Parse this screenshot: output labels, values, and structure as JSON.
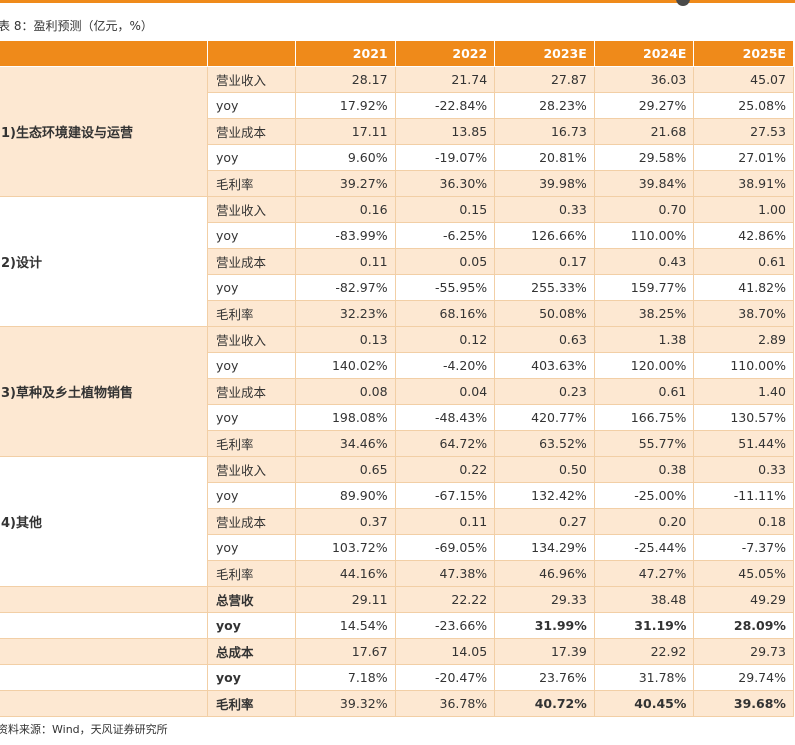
{
  "caption": "表 8：盈利预测（亿元，%）",
  "source": "资料来源：Wind，天风证券研究所",
  "header": [
    "",
    "",
    "2021",
    "2022",
    "2023E",
    "2024E",
    "2025E"
  ],
  "segments": [
    {
      "name": "1)生态环境建设与运营",
      "rows": [
        {
          "label": "营业收入",
          "values": [
            "28.17",
            "21.74",
            "27.87",
            "36.03",
            "45.07"
          ]
        },
        {
          "label": "yoy",
          "values": [
            "17.92%",
            "-22.84%",
            "28.23%",
            "29.27%",
            "25.08%"
          ]
        },
        {
          "label": "营业成本",
          "values": [
            "17.11",
            "13.85",
            "16.73",
            "21.68",
            "27.53"
          ]
        },
        {
          "label": "yoy",
          "values": [
            "9.60%",
            "-19.07%",
            "20.81%",
            "29.58%",
            "27.01%"
          ]
        },
        {
          "label": "毛利率",
          "values": [
            "39.27%",
            "36.30%",
            "39.98%",
            "39.84%",
            "38.91%"
          ]
        }
      ]
    },
    {
      "name": "2)设计",
      "rows": [
        {
          "label": "营业收入",
          "values": [
            "0.16",
            "0.15",
            "0.33",
            "0.70",
            "1.00"
          ]
        },
        {
          "label": "yoy",
          "values": [
            "-83.99%",
            "-6.25%",
            "126.66%",
            "110.00%",
            "42.86%"
          ]
        },
        {
          "label": "营业成本",
          "values": [
            "0.11",
            "0.05",
            "0.17",
            "0.43",
            "0.61"
          ]
        },
        {
          "label": "yoy",
          "values": [
            "-82.97%",
            "-55.95%",
            "255.33%",
            "159.77%",
            "41.82%"
          ]
        },
        {
          "label": "毛利率",
          "values": [
            "32.23%",
            "68.16%",
            "50.08%",
            "38.25%",
            "38.70%"
          ]
        }
      ]
    },
    {
      "name": "3)草种及乡土植物销售",
      "rows": [
        {
          "label": "营业收入",
          "values": [
            "0.13",
            "0.12",
            "0.63",
            "1.38",
            "2.89"
          ]
        },
        {
          "label": "yoy",
          "values": [
            "140.02%",
            "-4.20%",
            "403.63%",
            "120.00%",
            "110.00%"
          ]
        },
        {
          "label": "营业成本",
          "values": [
            "0.08",
            "0.04",
            "0.23",
            "0.61",
            "1.40"
          ]
        },
        {
          "label": "yoy",
          "values": [
            "198.08%",
            "-48.43%",
            "420.77%",
            "166.75%",
            "130.57%"
          ]
        },
        {
          "label": "毛利率",
          "values": [
            "34.46%",
            "64.72%",
            "63.52%",
            "55.77%",
            "51.44%"
          ]
        }
      ]
    },
    {
      "name": "4)其他",
      "rows": [
        {
          "label": "营业收入",
          "values": [
            "0.65",
            "0.22",
            "0.50",
            "0.38",
            "0.33"
          ]
        },
        {
          "label": "yoy",
          "values": [
            "89.90%",
            "-67.15%",
            "132.42%",
            "-25.00%",
            "-11.11%"
          ]
        },
        {
          "label": "营业成本",
          "values": [
            "0.37",
            "0.11",
            "0.27",
            "0.20",
            "0.18"
          ]
        },
        {
          "label": "yoy",
          "values": [
            "103.72%",
            "-69.05%",
            "134.29%",
            "-25.44%",
            "-7.37%"
          ]
        },
        {
          "label": "毛利率",
          "values": [
            "44.16%",
            "47.38%",
            "46.96%",
            "47.27%",
            "45.05%"
          ]
        }
      ]
    }
  ],
  "totals": [
    {
      "label": "总营收",
      "values": [
        "29.11",
        "22.22",
        "29.33",
        "38.48",
        "49.29"
      ]
    },
    {
      "label": "yoy",
      "values": [
        "14.54%",
        "-23.66%",
        "31.99%",
        "31.19%",
        "28.09%"
      ]
    },
    {
      "label": "总成本",
      "values": [
        "17.67",
        "14.05",
        "17.39",
        "22.92",
        "29.73"
      ]
    },
    {
      "label": "yoy",
      "values": [
        "7.18%",
        "-20.47%",
        "23.76%",
        "31.78%",
        "29.74%"
      ]
    },
    {
      "label": "毛利率",
      "values": [
        "39.32%",
        "36.78%",
        "40.72%",
        "40.45%",
        "39.68%"
      ]
    }
  ]
}
